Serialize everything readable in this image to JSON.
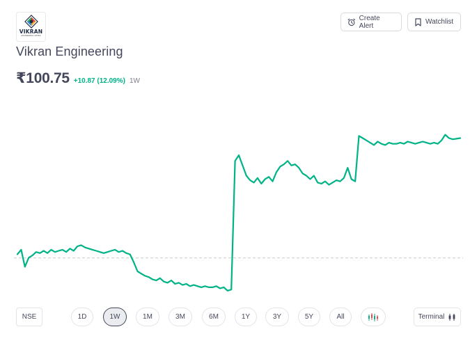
{
  "logo": {
    "brand": "VIKRAN",
    "sub": "ENGINEERING LIMITED"
  },
  "actions": {
    "create_alert": "Create Alert",
    "watchlist": "Watchlist"
  },
  "stock": {
    "name": "Vikran Engineering",
    "price": "₹100.75",
    "change": "+10.87 (12.09%)",
    "period": "1W"
  },
  "colors": {
    "line": "#00b386",
    "baseline": "#c9cacf",
    "accent_up": "#00b386"
  },
  "chart_data": {
    "type": "line",
    "title": "",
    "xlabel": "",
    "ylabel": "",
    "ylim": [
      86.5,
      103
    ],
    "baseline": 89.88,
    "series": [
      {
        "values": [
          90.2,
          90.6,
          89.1,
          89.9,
          90.1,
          90.4,
          90.3,
          90.5,
          90.3,
          90.6,
          90.4,
          90.5,
          90.6,
          90.4,
          90.7,
          90.5,
          90.9,
          91.0,
          90.8,
          90.7,
          90.6,
          90.5,
          90.4,
          90.3,
          90.4,
          90.5,
          90.6,
          90.4,
          90.5,
          90.3,
          90.2,
          89.5,
          88.7,
          88.5,
          88.3,
          88.2,
          88.0,
          87.9,
          88.1,
          87.8,
          87.7,
          87.9,
          87.6,
          87.7,
          87.5,
          87.6,
          87.4,
          87.5,
          87.4,
          87.3,
          87.4,
          87.3,
          87.3,
          87.4,
          87.2,
          87.3,
          87.0,
          87.1,
          98.4,
          98.9,
          98.0,
          97.1,
          96.7,
          96.5,
          96.9,
          96.4,
          96.8,
          97.0,
          96.6,
          97.4,
          97.9,
          98.1,
          98.4,
          98.0,
          98.1,
          97.8,
          97.3,
          97.1,
          96.8,
          97.1,
          96.5,
          96.4,
          96.6,
          96.3,
          96.5,
          96.7,
          96.6,
          96.9,
          97.8,
          96.8,
          96.6,
          100.6,
          100.4,
          100.2,
          100.0,
          99.8,
          100.1,
          99.9,
          99.8,
          100.0,
          99.9,
          99.9,
          100.0,
          99.9,
          100.1,
          100.0,
          99.9,
          100.0,
          100.1,
          100.0,
          99.9,
          100.0,
          99.9,
          100.2,
          100.7,
          100.4,
          100.3,
          100.35,
          100.4
        ]
      }
    ]
  },
  "exchange": "NSE",
  "ranges": [
    "1D",
    "1W",
    "1M",
    "3M",
    "6M",
    "1Y",
    "3Y",
    "5Y",
    "All"
  ],
  "active_range": "1W",
  "candle_icon": "candlestick-icon",
  "terminal": "Terminal"
}
